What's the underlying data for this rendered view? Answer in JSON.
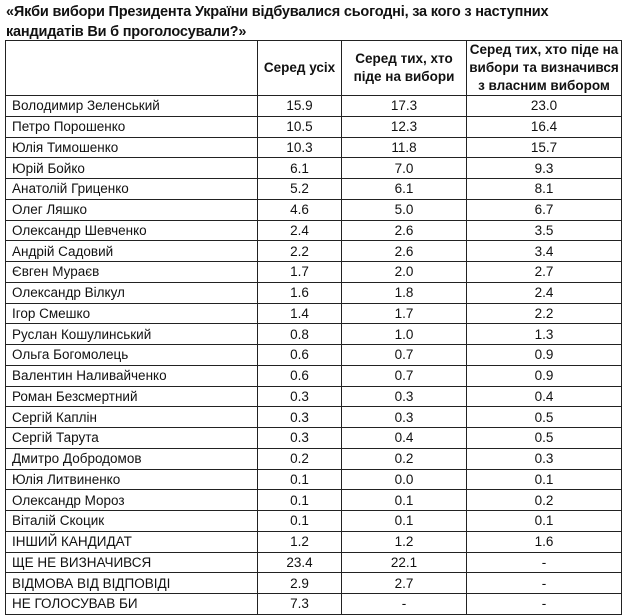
{
  "title": "«Якби вибори Президента України відбувалися сьогодні, за кого з наступних кандидатів Ви б проголосували?»",
  "table": {
    "headers": [
      "",
      "Серед усіх",
      "Серед тих, хто піде на вибори",
      "Серед тих, хто піде на вибори та визначився з власним вибором"
    ],
    "rows": [
      [
        "Володимир Зеленський",
        "15.9",
        "17.3",
        "23.0"
      ],
      [
        "Петро Порошенко",
        "10.5",
        "12.3",
        "16.4"
      ],
      [
        "Юлія Тимошенко",
        "10.3",
        "11.8",
        "15.7"
      ],
      [
        "Юрій Бойко",
        "6.1",
        "7.0",
        "9.3"
      ],
      [
        "Анатолій Гриценко",
        "5.2",
        "6.1",
        "8.1"
      ],
      [
        "Олег Ляшко",
        "4.6",
        "5.0",
        "6.7"
      ],
      [
        "Олександр Шевченко",
        "2.4",
        "2.6",
        "3.5"
      ],
      [
        "Андрій Садовий",
        "2.2",
        "2.6",
        "3.4"
      ],
      [
        "Євген Мураєв",
        "1.7",
        "2.0",
        "2.7"
      ],
      [
        "Олександр Вілкул",
        "1.6",
        "1.8",
        "2.4"
      ],
      [
        "Ігор Смешко",
        "1.4",
        "1.7",
        "2.2"
      ],
      [
        "Руслан Кошулинський",
        "0.8",
        "1.0",
        "1.3"
      ],
      [
        "Ольга Богомолець",
        "0.6",
        "0.7",
        "0.9"
      ],
      [
        "Валентин Наливайченко",
        "0.6",
        "0.7",
        "0.9"
      ],
      [
        "Роман Безсмертний",
        "0.3",
        "0.3",
        "0.4"
      ],
      [
        "Сергій Каплін",
        "0.3",
        "0.3",
        "0.5"
      ],
      [
        "Сергій Тарута",
        "0.3",
        "0.4",
        "0.5"
      ],
      [
        "Дмитро Добродомов",
        "0.2",
        "0.2",
        "0.3"
      ],
      [
        "Юлія Литвиненко",
        "0.1",
        "0.0",
        "0.1"
      ],
      [
        "Олександр Мороз",
        "0.1",
        "0.1",
        "0.2"
      ],
      [
        "Віталій Скоцик",
        "0.1",
        "0.1",
        "0.1"
      ],
      [
        "ІНШИЙ КАНДИДАТ",
        "1.2",
        "1.2",
        "1.6"
      ],
      [
        "ЩЕ НЕ ВИЗНАЧИВСЯ",
        "23.4",
        "22.1",
        "-"
      ],
      [
        "ВІДМОВА ВІД ВІДПОВІДІ",
        "2.9",
        "2.7",
        "-"
      ],
      [
        "НЕ ГОЛОСУВАВ БИ",
        "7.3",
        "-",
        "-"
      ]
    ]
  }
}
